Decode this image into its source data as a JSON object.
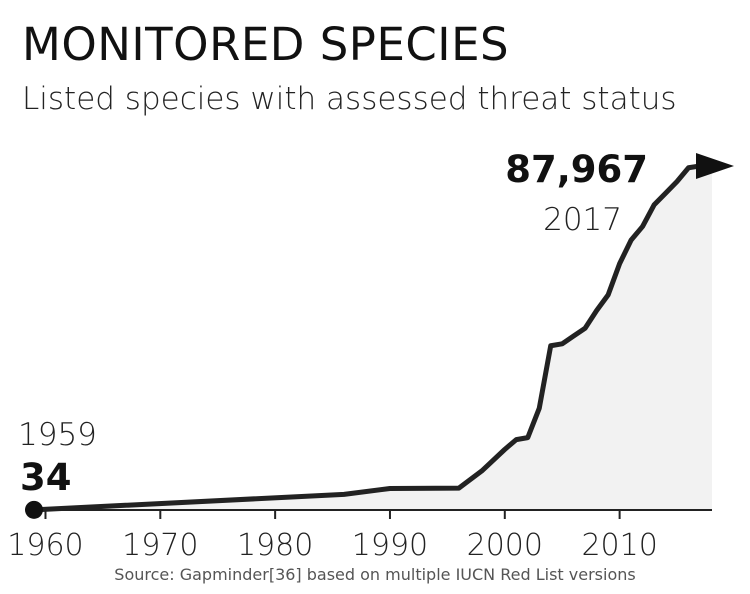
{
  "title": "MONITORED SPECIES",
  "subtitle": "Listed species with assessed threat status",
  "source": "Source: Gapminder[36] based on multiple IUCN Red List versions",
  "colors": {
    "line": "#222222",
    "area": "#f2f2f2",
    "text": "#111111"
  },
  "chart_data": {
    "type": "area",
    "title": "MONITORED SPECIES",
    "subtitle": "Listed species with assessed threat status",
    "xlabel": "",
    "ylabel": "",
    "xlim": [
      1959,
      2017
    ],
    "ylim": [
      0,
      90000
    ],
    "x_ticks": [
      "1960",
      "1970",
      "1980",
      "1990",
      "2000",
      "2010"
    ],
    "grid": false,
    "end_marker": "arrow",
    "start_marker": "dot",
    "annotations": [
      {
        "value": "34",
        "year": "1959",
        "anchor": "start"
      },
      {
        "value": "87,967",
        "year": "2017",
        "anchor": "end"
      }
    ],
    "series": [
      {
        "x": [
          1959,
          1986,
          1990,
          1996,
          1998,
          2000,
          2001,
          2002,
          2003,
          2004,
          2005,
          2006,
          2007,
          2008,
          2009,
          2010,
          2011,
          2012,
          2013,
          2014,
          2015,
          2016,
          2017
        ],
        "y": [
          34,
          4000,
          5500,
          5600,
          10000,
          15500,
          18000,
          18500,
          26000,
          42000,
          42500,
          44500,
          46500,
          51000,
          55000,
          63000,
          69000,
          72500,
          78000,
          81000,
          84000,
          87500,
          87967
        ]
      }
    ]
  }
}
